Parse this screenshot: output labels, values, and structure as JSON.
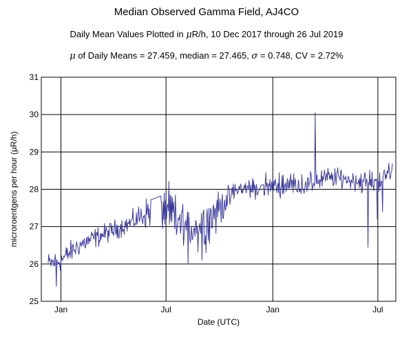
{
  "header": {
    "title": "Median Observed Gamma Field, AJ4CO",
    "subtitle_pre": "Daily Mean Values Plotted in ",
    "subtitle_mu": "μ",
    "subtitle_post": "R/h, 10 Dec 2017 through 26 Jul 2019",
    "stats_mu": "μ",
    "stats_post": " of Daily Means = 27.459,   median = 27.465,   ",
    "stats_sigma": "σ",
    "stats_end": " = 0.748,   CV = 2.72%"
  },
  "chart_data": {
    "type": "line",
    "title": "Median Observed Gamma Field, AJ4CO",
    "xlabel": "Date (UTC)",
    "ylabel": "microroentgens per hour (μR/h)",
    "ylim": [
      25,
      31
    ],
    "yticks": [
      "25",
      "26",
      "27",
      "28",
      "29",
      "30",
      "31"
    ],
    "xlim": [
      "2017-12-10",
      "2019-07-26"
    ],
    "xticks": [
      {
        "label": "Jan",
        "date": "2018-01-01"
      },
      {
        "label": "Jul",
        "date": "2018-07-01"
      },
      {
        "label": "Jan",
        "date": "2019-01-01"
      },
      {
        "label": "Jul",
        "date": "2019-07-01"
      }
    ],
    "grid": true,
    "line_color": "#3b3b9e",
    "series": [
      {
        "start_date": "2017-12-10",
        "end_date": "2019-07-26",
        "anchors": [
          [
            "2017-12-10",
            26.0
          ],
          [
            "2018-01-01",
            26.1
          ],
          [
            "2018-02-01",
            26.5
          ],
          [
            "2018-03-01",
            26.7
          ],
          [
            "2018-04-01",
            26.9
          ],
          [
            "2018-05-01",
            27.1
          ],
          [
            "2018-06-01",
            27.4
          ],
          [
            "2018-07-01",
            27.4
          ],
          [
            "2018-08-01",
            27.0
          ],
          [
            "2018-09-01",
            27.0
          ],
          [
            "2018-10-01",
            27.5
          ],
          [
            "2018-11-01",
            28.0
          ],
          [
            "2018-12-15",
            28.05
          ],
          [
            "2019-02-01",
            28.15
          ],
          [
            "2019-03-01",
            28.1
          ],
          [
            "2019-04-01",
            28.3
          ],
          [
            "2019-05-01",
            28.3
          ],
          [
            "2019-06-01",
            28.2
          ],
          [
            "2019-07-01",
            28.2
          ],
          [
            "2019-07-26",
            28.5
          ]
        ],
        "noise": [
          [
            "2017-12-10",
            0.25
          ],
          [
            "2018-05-01",
            0.2
          ],
          [
            "2018-07-10",
            0.55
          ],
          [
            "2018-09-20",
            0.5
          ],
          [
            "2018-10-15",
            0.25
          ],
          [
            "2019-07-26",
            0.22
          ]
        ],
        "spikes": [
          [
            "2017-12-24",
            25.4
          ],
          [
            "2018-06-28",
            27.9
          ],
          [
            "2018-08-08",
            26.0
          ],
          [
            "2018-09-01",
            26.1
          ],
          [
            "2019-03-15",
            30.05
          ],
          [
            "2019-03-16",
            28.6
          ],
          [
            "2019-06-14",
            26.45
          ],
          [
            "2019-06-30",
            27.2
          ],
          [
            "2019-07-09",
            27.4
          ],
          [
            "2019-07-20",
            28.7
          ]
        ]
      }
    ]
  }
}
